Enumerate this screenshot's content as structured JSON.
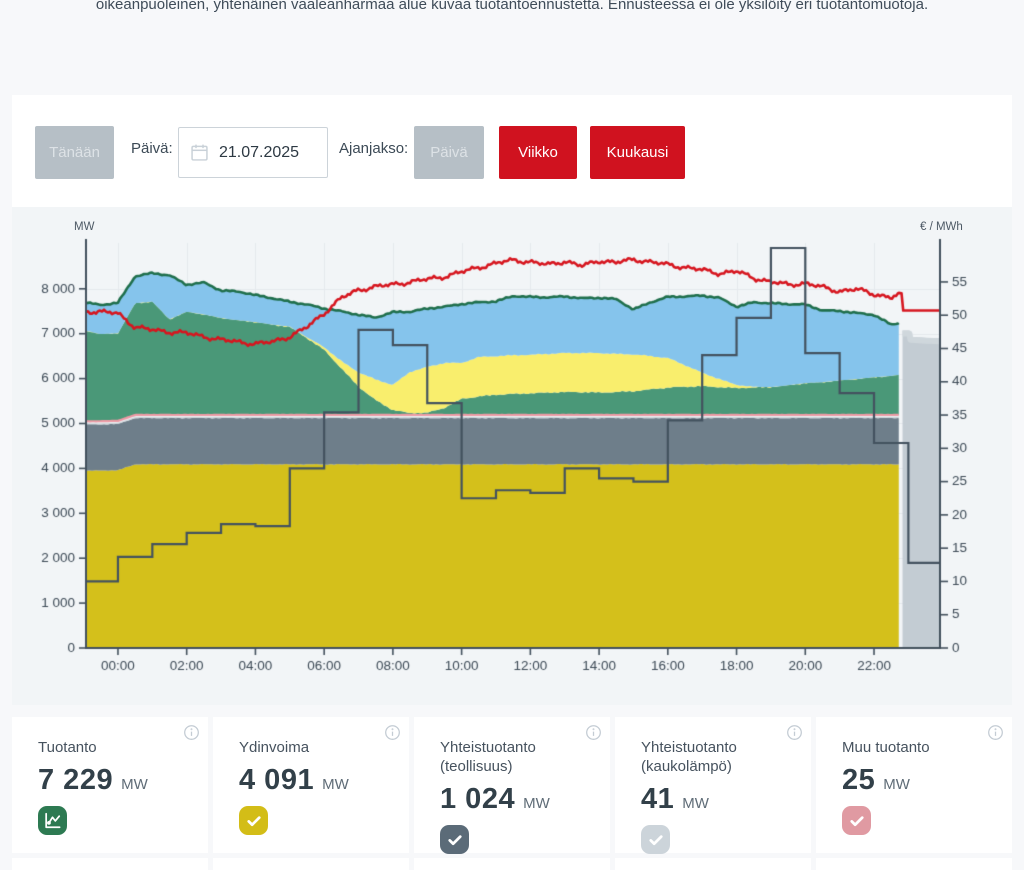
{
  "page": {
    "top_note": "oikeanpuoleinen, yhtenäinen vaaleanharmaa alue kuvaa tuotantoennustetta. Ennusteessa ei ole yksilöity eri tuotantomuotoja."
  },
  "controls": {
    "today_label": "Tänään",
    "date_label": "Päivä:",
    "date_value": "21.07.2025",
    "period_label": "Ajanjakso:",
    "period_options": {
      "day": "Päivä",
      "week": "Viikko",
      "month": "Kuukausi"
    }
  },
  "chart": {
    "left_unit": "MW",
    "right_unit": "€ / MWh"
  },
  "chart_data": {
    "type": "area",
    "title": "",
    "left_axis": {
      "unit": "MW",
      "min": 0,
      "max": 9020,
      "ticks": [
        0,
        1000,
        2000,
        3000,
        4000,
        5000,
        6000,
        7000,
        8000
      ]
    },
    "right_axis": {
      "unit": "€ / MWh",
      "min": 0,
      "max": 60.85,
      "ticks": [
        0,
        5,
        10,
        15,
        20,
        25,
        30,
        35,
        40,
        45,
        50,
        55
      ]
    },
    "x_tick_hours": [
      0,
      2,
      4,
      6,
      8,
      10,
      12,
      14,
      16,
      18,
      20,
      22
    ],
    "x_tick_labels": [
      "00:00",
      "02:00",
      "04:00",
      "06:00",
      "08:00",
      "10:00",
      "12:00",
      "14:00",
      "16:00",
      "18:00",
      "20:00",
      "22:00"
    ],
    "x_start_hour": -0.93,
    "x_end_hour": 23.92,
    "measured_end_hour": 22.72,
    "grid": true,
    "time_points": [
      -1,
      -0.5,
      0,
      0.5,
      1,
      1.5,
      2,
      2.5,
      3,
      3.5,
      4,
      4.5,
      5,
      5.5,
      6,
      6.5,
      7,
      7.5,
      8,
      8.5,
      9,
      9.5,
      10,
      10.5,
      11,
      11.5,
      12,
      12.5,
      13,
      13.5,
      14,
      14.5,
      15,
      15.5,
      16,
      16.5,
      17,
      17.5,
      18,
      18.5,
      19,
      19.5,
      20,
      20.5,
      21,
      21.5,
      22,
      22.5,
      22.72
    ],
    "areas": [
      {
        "name": "Ydinvoima",
        "color": "#d4c01b",
        "values": [
          3950,
          3950,
          3960,
          4090,
          4090,
          4090,
          4090,
          4090,
          4090,
          4090,
          4090,
          4090,
          4090,
          4090,
          4090,
          4090,
          4090,
          4090,
          4090,
          4090,
          4090,
          4090,
          4090,
          4090,
          4090,
          4090,
          4090,
          4090,
          4090,
          4090,
          4090,
          4090,
          4090,
          4090,
          4090,
          4090,
          4090,
          4090,
          4090,
          4090,
          4090,
          4090,
          4090,
          4090,
          4090,
          4090,
          4090,
          4090,
          4090
        ]
      },
      {
        "name": "Yhteistuotanto (teollisuus)",
        "color": "#6e7e8a",
        "values": [
          1030,
          1030,
          1030,
          1030,
          1030,
          1030,
          1030,
          1030,
          1030,
          1030,
          1030,
          1030,
          1030,
          1030,
          1030,
          1030,
          1030,
          1030,
          1030,
          1030,
          1030,
          1030,
          1030,
          1030,
          1030,
          1030,
          1030,
          1030,
          1030,
          1030,
          1030,
          1030,
          1030,
          1030,
          1030,
          1030,
          1030,
          1030,
          1030,
          1030,
          1030,
          1030,
          1030,
          1030,
          1030,
          1030,
          1030,
          1030,
          1030
        ]
      },
      {
        "name": "Yhteistuotanto (kaukolämpö)",
        "color": "#cdd5da",
        "values": [
          45,
          45,
          45,
          45,
          45,
          45,
          45,
          45,
          45,
          45,
          45,
          45,
          45,
          45,
          45,
          45,
          45,
          45,
          45,
          45,
          45,
          45,
          45,
          45,
          45,
          45,
          45,
          45,
          45,
          45,
          45,
          45,
          45,
          45,
          45,
          45,
          45,
          45,
          45,
          45,
          45,
          45,
          45,
          45,
          45,
          45,
          45,
          45,
          45
        ]
      },
      {
        "name": "Muu tuotanto",
        "color": "#ec9fa8",
        "values": [
          25,
          25,
          25,
          25,
          25,
          25,
          25,
          25,
          25,
          25,
          25,
          25,
          25,
          25,
          25,
          25,
          25,
          25,
          25,
          25,
          25,
          25,
          25,
          25,
          25,
          25,
          25,
          25,
          25,
          25,
          25,
          25,
          25,
          25,
          25,
          25,
          25,
          25,
          25,
          25,
          25,
          25,
          25,
          25,
          25,
          25,
          25,
          25,
          25
        ]
      },
      {
        "name": "area-green",
        "color": "#4a9878",
        "values": [
          2030,
          1940,
          1950,
          2490,
          2525,
          2130,
          2300,
          2240,
          2160,
          2110,
          2070,
          2010,
          1960,
          1710,
          1450,
          1040,
          630,
          330,
          110,
          40,
          50,
          160,
          360,
          410,
          450,
          470,
          480,
          500,
          510,
          510,
          500,
          510,
          530,
          570,
          610,
          630,
          640,
          620,
          600,
          610,
          620,
          660,
          710,
          730,
          770,
          800,
          840,
          870,
          890
        ]
      },
      {
        "name": "area-light-yellow",
        "color": "#f9ee6d",
        "values": [
          0,
          0,
          0,
          0,
          0,
          0,
          0,
          0,
          0,
          0,
          0,
          0,
          10,
          20,
          60,
          160,
          320,
          460,
          560,
          920,
          1020,
          1000,
          800,
          880,
          860,
          860,
          860,
          860,
          870,
          870,
          880,
          850,
          820,
          740,
          660,
          480,
          300,
          180,
          70,
          20,
          0,
          0,
          0,
          0,
          0,
          0,
          0,
          0,
          0
        ]
      },
      {
        "name": "area-blue",
        "color": "#85c4ec",
        "values": [
          620,
          650,
          680,
          600,
          635,
          980,
          600,
          710,
          610,
          640,
          600,
          590,
          550,
          730,
          860,
          1110,
          1280,
          1380,
          1620,
          1340,
          1300,
          1250,
          1310,
          1220,
          1220,
          1320,
          1290,
          1260,
          1260,
          1220,
          1230,
          1220,
          1000,
          1200,
          1360,
          1530,
          1720,
          1810,
          1740,
          1880,
          1870,
          1810,
          1750,
          1600,
          1545,
          1470,
          1390,
          1140,
          1160
        ]
      }
    ],
    "total_line": {
      "name": "Tuotanto",
      "color": "#1f6f4c",
      "values": [
        7700,
        7640,
        7690,
        8280,
        8350,
        8300,
        8090,
        8140,
        7960,
        7940,
        7860,
        7790,
        7710,
        7650,
        7560,
        7500,
        7420,
        7360,
        7480,
        7490,
        7560,
        7600,
        7660,
        7700,
        7720,
        7840,
        7820,
        7810,
        7830,
        7790,
        7800,
        7770,
        7540,
        7700,
        7820,
        7830,
        7850,
        7800,
        7600,
        7700,
        7680,
        7660,
        7650,
        7520,
        7505,
        7460,
        7420,
        7200,
        7240
      ]
    },
    "red_line": {
      "name": "red-line",
      "color": "#d6161f",
      "axis": "right",
      "values": [
        50.6,
        50.5,
        50.3,
        48.2,
        47.8,
        47.5,
        47.3,
        46.8,
        46.3,
        46.0,
        45.7,
        46.0,
        46.8,
        48.2,
        50.3,
        52.6,
        53.8,
        54.3,
        54.6,
        55.0,
        55.4,
        55.8,
        56.5,
        57.2,
        57.8,
        58.3,
        58.0,
        57.6,
        58.1,
        57.4,
        58.2,
        57.9,
        58.4,
        58.0,
        57.6,
        57.2,
        56.8,
        56.3,
        56.6,
        55.6,
        55.0,
        54.6,
        54.8,
        54.2,
        53.6,
        53.9,
        53.2,
        52.6,
        53.2
      ],
      "forecast": [
        [
          22.8,
          53.3
        ],
        [
          22.85,
          50.7
        ],
        [
          23.92,
          50.7
        ]
      ]
    },
    "step_line": {
      "name": "step-line",
      "color": "#43525f",
      "axis": "right",
      "start_hour": -1,
      "hourly_values": [
        10.0,
        13.7,
        15.6,
        17.3,
        18.6,
        18.3,
        27.0,
        35.4,
        47.8,
        45.5,
        36.8,
        22.5,
        23.7,
        23.3,
        27.0,
        25.5,
        25.0,
        34.2,
        44.0,
        49.6,
        60.1,
        44.3,
        38.3,
        30.8,
        12.8
      ]
    },
    "forecast_area": {
      "name": "tuotantoennuste",
      "color": "#c3ccd3",
      "edge_color": "#cfd7dc",
      "top_points": [
        [
          22.83,
          7070
        ],
        [
          23.03,
          7070
        ],
        [
          23.06,
          6930
        ],
        [
          23.5,
          6910
        ],
        [
          23.92,
          6900
        ]
      ]
    }
  },
  "cards": {
    "items": [
      {
        "title": "Tuotanto",
        "value": "7 229",
        "unit": "MW",
        "color": "#2d7a52",
        "icon": "line-chart"
      },
      {
        "title": "Ydinvoima",
        "value": "4 091",
        "unit": "MW",
        "color": "#d3bd17",
        "icon": "checkbox-checked"
      },
      {
        "title": "Yhteistuotanto (teollisuus)",
        "value": "1 024",
        "unit": "MW",
        "color": "#5b6b78",
        "icon": "checkbox-checked"
      },
      {
        "title": "Yhteistuotanto (kaukolämpö)",
        "value": "41",
        "unit": "MW",
        "color": "#ccd4da",
        "icon": "checkbox-checked"
      },
      {
        "title": "Muu tuotanto",
        "value": "25",
        "unit": "MW",
        "color": "#e09aa2",
        "icon": "checkbox-checked"
      }
    ]
  }
}
